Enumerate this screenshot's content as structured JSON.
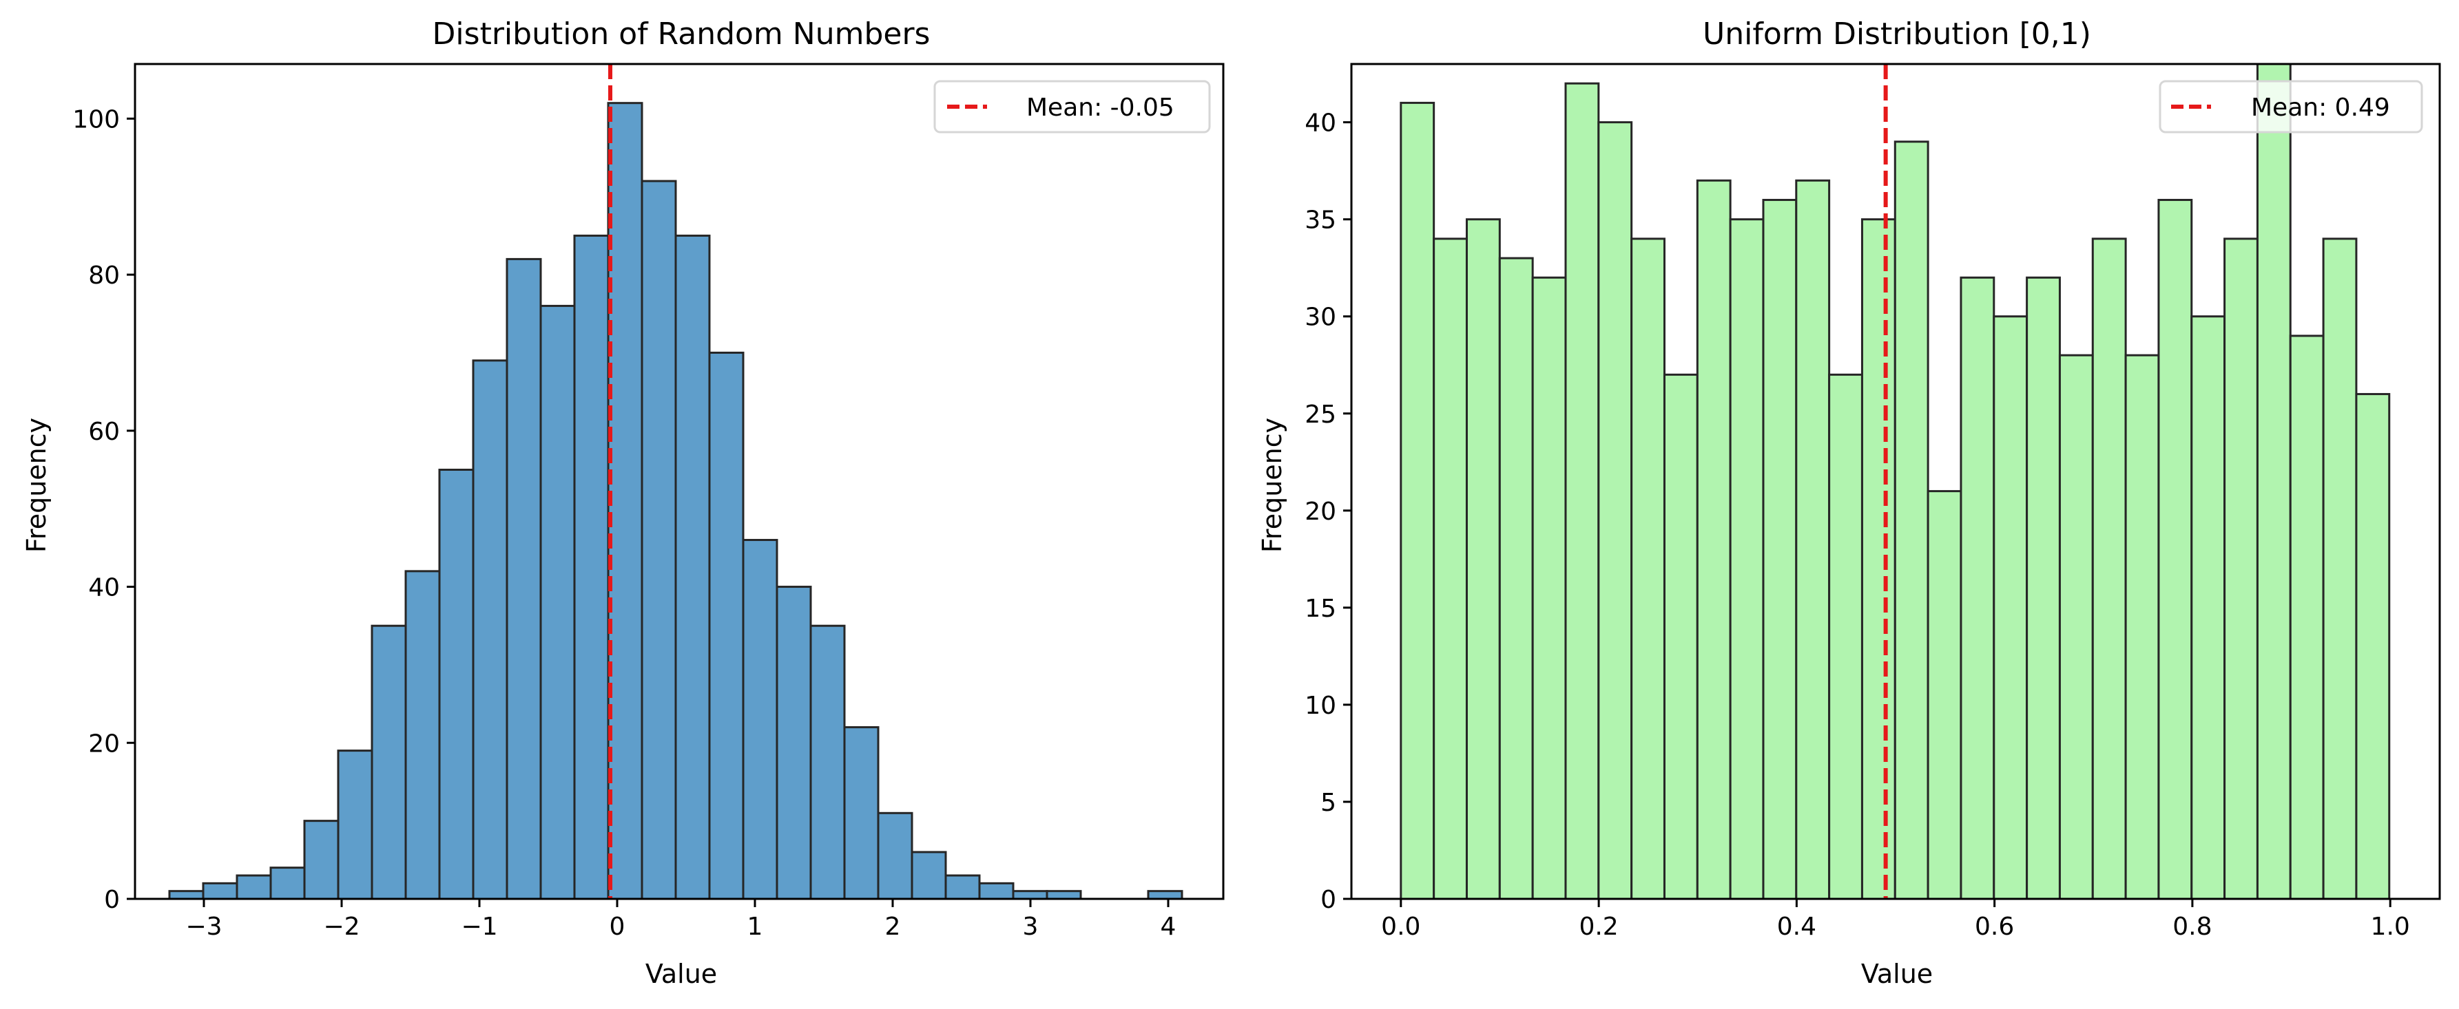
{
  "chart_data": [
    {
      "type": "bar",
      "subtype": "histogram",
      "title": "Distribution of Random Numbers",
      "xlabel": "Value",
      "ylabel": "Frequency",
      "xlim": [
        -3.5,
        4.4
      ],
      "ylim": [
        0,
        107
      ],
      "xticks": [
        -3,
        -2,
        -1,
        0,
        1,
        2,
        3,
        4
      ],
      "xtick_labels": [
        "−3",
        "−2",
        "−1",
        "0",
        "1",
        "2",
        "3",
        "4"
      ],
      "yticks": [
        0,
        20,
        40,
        60,
        80,
        100
      ],
      "bin_start": -3.25,
      "bin_width": 0.245,
      "values": [
        1,
        2,
        3,
        4,
        10,
        19,
        35,
        42,
        55,
        69,
        82,
        76,
        85,
        102,
        92,
        85,
        70,
        46,
        40,
        35,
        22,
        11,
        6,
        3,
        2,
        1,
        1,
        0,
        0,
        1
      ],
      "bar_color": "#5f9ecb",
      "edge_color": "#262626",
      "mean_line": {
        "x": -0.05,
        "color": "#e6191a"
      },
      "legend": {
        "entries": [
          "Mean: -0.05"
        ],
        "position": "top-right"
      },
      "grid": false
    },
    {
      "type": "bar",
      "subtype": "histogram",
      "title": "Uniform Distribution [0,1)",
      "xlabel": "Value",
      "ylabel": "Frequency",
      "xlim": [
        -0.05,
        1.05
      ],
      "ylim": [
        0,
        43
      ],
      "xticks": [
        0.0,
        0.2,
        0.4,
        0.6,
        0.8,
        1.0
      ],
      "xtick_labels": [
        "0.0",
        "0.2",
        "0.4",
        "0.6",
        "0.8",
        "1.0"
      ],
      "yticks": [
        0,
        5,
        10,
        15,
        20,
        25,
        30,
        35,
        40
      ],
      "bin_start": 0.0,
      "bin_width": 0.0333,
      "values": [
        41,
        34,
        35,
        33,
        32,
        42,
        40,
        34,
        27,
        37,
        35,
        36,
        37,
        27,
        35,
        39,
        21,
        32,
        30,
        32,
        28,
        34,
        28,
        36,
        30,
        34,
        43,
        29,
        34,
        26
      ],
      "bar_color": "#b1f4af",
      "edge_color": "#262626",
      "mean_line": {
        "x": 0.49,
        "color": "#e6191a"
      },
      "legend": {
        "entries": [
          "Mean: 0.49"
        ],
        "position": "top-right"
      },
      "grid": false
    }
  ]
}
